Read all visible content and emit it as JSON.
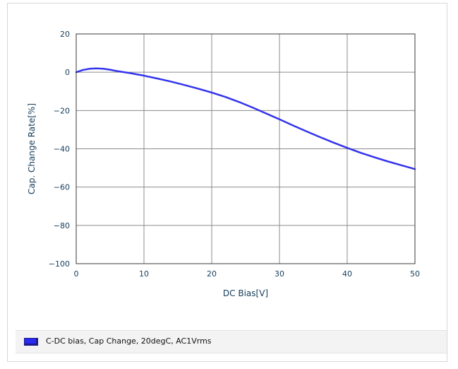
{
  "chart_data": {
    "type": "line",
    "title": "",
    "xlabel": "DC Bias[V]",
    "ylabel": "Cap. Change Rate[%]",
    "xlim": [
      0,
      50
    ],
    "ylim": [
      -100,
      20
    ],
    "xticks": [
      0,
      10,
      20,
      30,
      40,
      50
    ],
    "yticks": [
      20,
      0,
      -20,
      -40,
      -60,
      -80,
      -100
    ],
    "xtick_labels": [
      "0",
      "10",
      "20",
      "30",
      "40",
      "50"
    ],
    "ytick_labels": [
      "20",
      "0",
      "−20",
      "−40",
      "−60",
      "−80",
      "−100"
    ],
    "grid": true,
    "legend_position": "bottom",
    "series": [
      {
        "name": "C-DC bias, Cap Change, 20degC, AC1Vrms",
        "color": "#3333ee",
        "x": [
          0,
          1,
          2,
          3,
          4,
          5,
          6,
          8,
          10,
          12,
          14,
          16,
          18,
          20,
          22,
          24,
          26,
          28,
          30,
          32,
          34,
          36,
          38,
          40,
          42,
          44,
          46,
          48,
          50
        ],
        "y": [
          0,
          1.2,
          1.8,
          2,
          1.8,
          1.3,
          0.6,
          -0.5,
          -1.8,
          -3.3,
          -4.9,
          -6.7,
          -8.6,
          -10.6,
          -12.9,
          -15.5,
          -18.4,
          -21.5,
          -24.6,
          -27.8,
          -30.9,
          -33.9,
          -36.8,
          -39.5,
          -42.1,
          -44.4,
          -46.6,
          -48.6,
          -50.6
        ]
      }
    ]
  },
  "legend": {
    "swatch_color": "#2a2af0",
    "label": "C-DC bias, Cap Change, 20degC, AC1Vrms"
  },
  "colors": {
    "axis_text": "#143c5a",
    "grid": "#8c8c8c",
    "plot_border": "#3a3a3a"
  }
}
